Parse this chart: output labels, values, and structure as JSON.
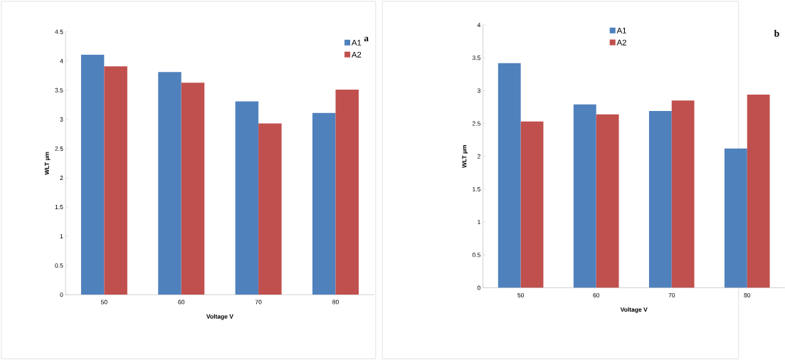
{
  "chart_data": [
    {
      "type": "bar",
      "categories": [
        "50",
        "60",
        "70",
        "80"
      ],
      "xlabel": "Voltage V",
      "ylabel": "WLT µm",
      "ylim": [
        0,
        4.5
      ],
      "yticks": [
        0,
        0.5,
        1,
        1.5,
        2,
        2.5,
        3,
        3.5,
        4,
        4.5
      ],
      "legend": "top right",
      "annotations": [
        "a"
      ],
      "series": [
        {
          "name": "A1",
          "color": "#4f81bd",
          "values": [
            4.11,
            3.81,
            3.31,
            3.11
          ]
        },
        {
          "name": "A2",
          "color": "#c0504d",
          "values": [
            3.91,
            3.63,
            2.93,
            3.51
          ]
        }
      ]
    },
    {
      "type": "bar",
      "categories": [
        "50",
        "60",
        "70",
        "80"
      ],
      "xlabel": "Voltage V",
      "ylabel": "WLT µm",
      "ylim": [
        0,
        4
      ],
      "yticks": [
        0,
        0.5,
        1,
        1.5,
        2,
        2.5,
        3,
        3.5,
        4
      ],
      "legend": "top",
      "annotations": [
        "b"
      ],
      "series": [
        {
          "name": "A1",
          "color": "#4f81bd",
          "values": [
            3.42,
            2.79,
            2.69,
            2.12
          ]
        },
        {
          "name": "A2",
          "color": "#c0504d",
          "values": [
            2.53,
            2.64,
            2.85,
            2.94
          ]
        }
      ]
    }
  ]
}
